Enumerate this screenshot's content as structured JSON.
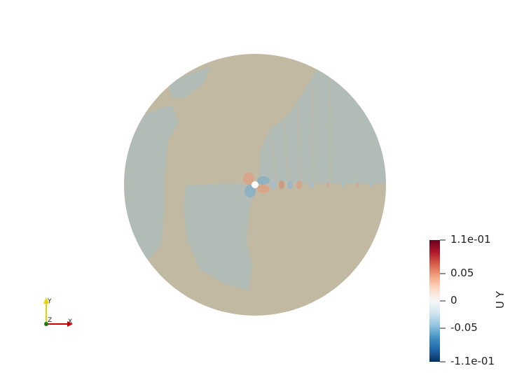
{
  "colorbar": {
    "title": "U Y",
    "labels": {
      "max": "1.1e-01",
      "p005": "0.05",
      "zero": "0",
      "m005": "-0.05",
      "min": "-1.1e-01"
    },
    "stops": [
      "#67001f",
      "#b2182b",
      "#d6604d",
      "#f4a582",
      "#fddbc7",
      "#f7f7f7",
      "#d1e5f0",
      "#92c5de",
      "#4393c3",
      "#2166ac",
      "#053061"
    ]
  },
  "orientation_axes": {
    "x_label": "X",
    "y_label": "Y",
    "z_label": "Z"
  },
  "colors": {
    "field_base": "#c2b9a3",
    "field_negative": "#b1bcb6"
  }
}
